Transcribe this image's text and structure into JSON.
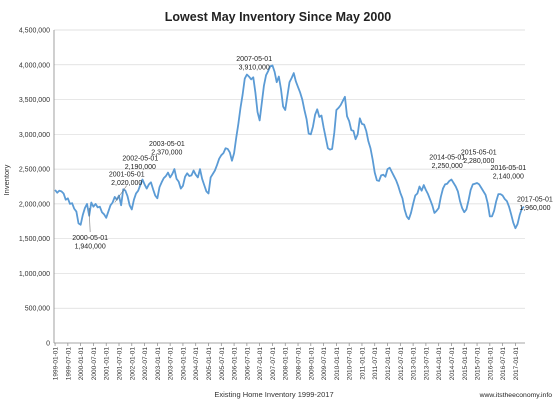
{
  "chart_data": {
    "type": "line",
    "title": "Lowest May Inventory Since May 2000",
    "xlabel": "Existing Home Inventory 1999-2017",
    "ylabel": "Inventory",
    "credit": "www.itstheeconomy.info",
    "ylim": [
      0,
      4500000
    ],
    "yticks": [
      0,
      500000,
      1000000,
      1500000,
      2000000,
      2500000,
      3000000,
      3500000,
      4000000,
      4500000
    ],
    "ytick_labels": [
      "0",
      "500,000",
      "1,000,000",
      "1,500,000",
      "2,000,000",
      "2,500,000",
      "3,000,000",
      "3,500,000",
      "4,000,000",
      "4,500,000"
    ],
    "xtick_labels": [
      "1999-01-01",
      "1999-07-01",
      "2000-01-01",
      "2000-07-01",
      "2001-01-01",
      "2001-07-01",
      "2002-01-01",
      "2002-07-01",
      "2003-01-01",
      "2003-07-01",
      "2004-01-01",
      "2004-07-01",
      "2005-01-01",
      "2005-07-01",
      "2006-01-01",
      "2006-07-01",
      "2007-01-01",
      "2007-07-01",
      "2008-01-01",
      "2008-07-01",
      "2009-01-01",
      "2009-07-01",
      "2010-01-01",
      "2010-07-01",
      "2011-01-01",
      "2011-07-01",
      "2012-01-01",
      "2012-07-01",
      "2013-01-01",
      "2013-07-01",
      "2014-01-01",
      "2014-07-01",
      "2015-01-01",
      "2015-07-01",
      "2016-01-01",
      "2016-07-01",
      "2017-01-01"
    ],
    "line_color": "#5b9bd5",
    "grid": true,
    "legend": "none",
    "series": [
      {
        "start": "1999-01-01",
        "frequency": "monthly",
        "values": [
          2200000,
          2160000,
          2190000,
          2180000,
          2150000,
          2060000,
          2080000,
          2000000,
          2010000,
          1930000,
          1890000,
          1720000,
          1700000,
          1840000,
          1940000,
          2000000,
          1830000,
          2020000,
          1960000,
          2000000,
          1950000,
          1960000,
          1880000,
          1850000,
          1800000,
          1890000,
          1980000,
          2020000,
          2100000,
          2060000,
          2120000,
          1980000,
          2210000,
          2190000,
          2110000,
          1980000,
          1920000,
          2060000,
          2150000,
          2190000,
          2270000,
          2350000,
          2280000,
          2220000,
          2280000,
          2310000,
          2210000,
          2120000,
          2080000,
          2240000,
          2310000,
          2370000,
          2400000,
          2450000,
          2380000,
          2430000,
          2500000,
          2360000,
          2320000,
          2220000,
          2260000,
          2390000,
          2440000,
          2400000,
          2410000,
          2480000,
          2420000,
          2380000,
          2500000,
          2360000,
          2270000,
          2180000,
          2150000,
          2380000,
          2430000,
          2480000,
          2560000,
          2650000,
          2700000,
          2730000,
          2800000,
          2790000,
          2740000,
          2620000,
          2730000,
          2950000,
          3150000,
          3380000,
          3570000,
          3800000,
          3860000,
          3830000,
          3790000,
          3820000,
          3600000,
          3320000,
          3200000,
          3450000,
          3700000,
          3850000,
          3910000,
          3980000,
          3990000,
          3900000,
          3750000,
          3830000,
          3650000,
          3400000,
          3350000,
          3550000,
          3750000,
          3810000,
          3880000,
          3760000,
          3680000,
          3600000,
          3500000,
          3350000,
          3220000,
          3010000,
          3000000,
          3110000,
          3280000,
          3360000,
          3250000,
          3270000,
          3100000,
          2950000,
          2800000,
          2780000,
          2790000,
          3020000,
          3350000,
          3380000,
          3420000,
          3480000,
          3540000,
          3260000,
          3190000,
          3060000,
          3050000,
          2930000,
          3000000,
          3230000,
          3150000,
          3140000,
          3050000,
          2900000,
          2800000,
          2640000,
          2450000,
          2340000,
          2330000,
          2410000,
          2420000,
          2390000,
          2500000,
          2520000,
          2460000,
          2400000,
          2340000,
          2260000,
          2160000,
          2080000,
          1920000,
          1820000,
          1780000,
          1870000,
          2000000,
          2120000,
          2150000,
          2250000,
          2190000,
          2270000,
          2200000,
          2140000,
          2060000,
          1980000,
          1870000,
          1900000,
          1940000,
          2100000,
          2220000,
          2280000,
          2290000,
          2330000,
          2350000,
          2300000,
          2250000,
          2180000,
          2040000,
          1940000,
          1880000,
          1920000,
          2050000,
          2200000,
          2280000,
          2290000,
          2300000,
          2280000,
          2230000,
          2180000,
          2130000,
          2010000,
          1820000,
          1820000,
          1900000,
          2040000,
          2140000,
          2140000,
          2120000,
          2070000,
          2040000,
          1960000,
          1850000,
          1730000,
          1650000,
          1710000,
          1840000,
          1930000,
          1960000
        ]
      }
    ],
    "annotations": [
      {
        "date": "2000-05-01",
        "value": 1940000,
        "label_date": "2000-05-01",
        "label_value": "1,940,000"
      },
      {
        "date": "2001-05-01",
        "value": 2020000,
        "label_date": "2001-05-01",
        "label_value": "2,020,000"
      },
      {
        "date": "2002-05-01",
        "value": 2190000,
        "label_date": "2002-05-01",
        "label_value": "2,190,000"
      },
      {
        "date": "2003-05-01",
        "value": 2370000,
        "label_date": "2003-05-01",
        "label_value": "2,370,000"
      },
      {
        "date": "2007-05-01",
        "value": 3910000,
        "label_date": "2007-05-01",
        "label_value": "3,910,000"
      },
      {
        "date": "2014-05-01",
        "value": 2250000,
        "label_date": "2014-05-01",
        "label_value": "2,250,000"
      },
      {
        "date": "2015-05-01",
        "value": 2280000,
        "label_date": "2015-05-01",
        "label_value": "2,280,000"
      },
      {
        "date": "2016-05-01",
        "value": 2140000,
        "label_date": "2016-05-01",
        "label_value": "2,140,000"
      },
      {
        "date": "2017-05-01",
        "value": 1960000,
        "label_date": "2017-05-01",
        "label_value": "1,960,000"
      }
    ]
  }
}
